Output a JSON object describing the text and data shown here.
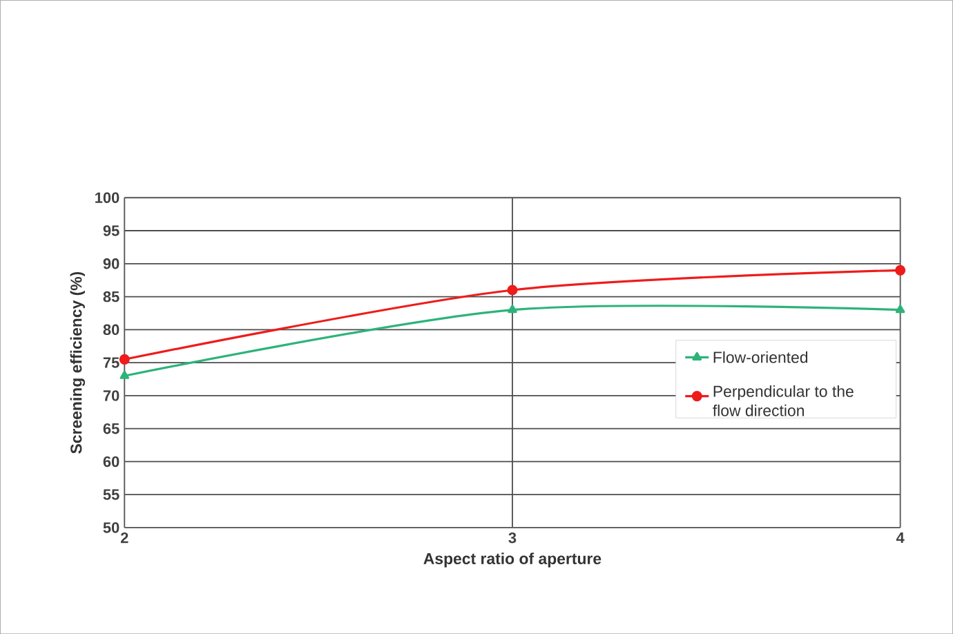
{
  "chart_data": {
    "type": "line",
    "xlabel": "Aspect ratio of aperture",
    "ylabel": "Screening efficiency (%)",
    "x": [
      2,
      3,
      4
    ],
    "xlim": [
      2,
      4
    ],
    "xticks": [
      2,
      3,
      4
    ],
    "ylim": [
      50,
      100
    ],
    "yticks": [
      50,
      55,
      60,
      65,
      70,
      75,
      80,
      85,
      90,
      95,
      100
    ],
    "series": [
      {
        "name": "Flow-oriented",
        "color": "#2db37a",
        "marker": "triangle",
        "values": [
          73,
          83,
          83
        ]
      },
      {
        "name": "Perpendicular to the flow direction",
        "color": "#ee1c1c",
        "marker": "circle",
        "values": [
          75.5,
          86,
          89
        ]
      }
    ],
    "grid": true,
    "legend": "right",
    "line_style": "solid"
  }
}
